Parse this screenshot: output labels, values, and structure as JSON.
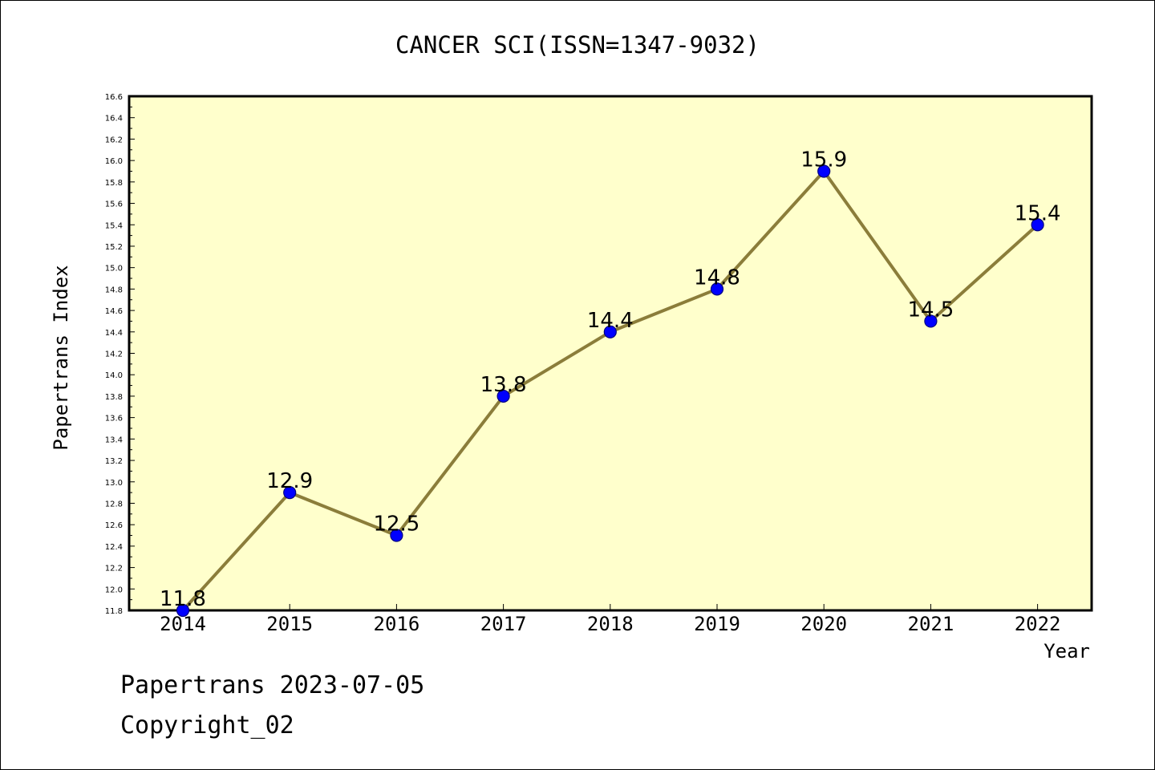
{
  "chart_data": {
    "type": "line",
    "title": "CANCER SCI(ISSN=1347-9032)",
    "xlabel": "Year",
    "ylabel": "Papertrans Index",
    "categories": [
      "2014",
      "2015",
      "2016",
      "2017",
      "2018",
      "2019",
      "2020",
      "2021",
      "2022"
    ],
    "series": [
      {
        "values": [
          11.8,
          12.9,
          12.5,
          13.8,
          14.4,
          14.8,
          15.9,
          14.5,
          15.4
        ]
      }
    ],
    "data_labels": [
      "11.8",
      "12.9",
      "12.5",
      "13.8",
      "14.4",
      "14.8",
      "15.9",
      "14.5",
      "15.4"
    ],
    "ylim": [
      11.8,
      16.6
    ],
    "yticks": [
      "11.8",
      "12.0",
      "12.2",
      "12.4",
      "12.6",
      "12.8",
      "13.0",
      "13.2",
      "13.4",
      "13.6",
      "13.8",
      "14.0",
      "14.2",
      "14.4",
      "14.6",
      "14.8",
      "15.0",
      "15.2",
      "15.4",
      "15.6",
      "15.8",
      "16.0",
      "16.2",
      "16.4",
      "16.6"
    ],
    "grid": false,
    "legend": "none",
    "colors": {
      "plot_background": "#ffffcc",
      "line": "#8b7d3a",
      "marker": "#0000ff",
      "marker_edge": "#000080"
    }
  },
  "footer": {
    "line1": "Papertrans 2023-07-05",
    "line2": "Copyright_02"
  }
}
